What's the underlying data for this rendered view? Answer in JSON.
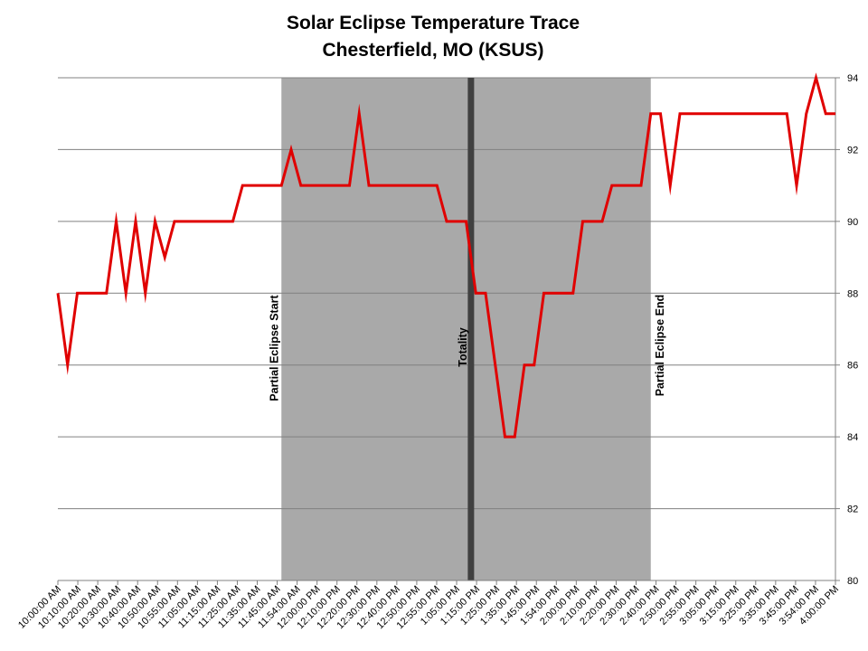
{
  "chart_data": {
    "type": "line",
    "title": "Solar Eclipse Temperature Trace",
    "subtitle": "Chesterfield, MO (KSUS)",
    "xlabel": "",
    "ylabel": "",
    "ylim": [
      80,
      94
    ],
    "y_ticks": [
      80,
      82,
      84,
      86,
      88,
      90,
      92,
      94
    ],
    "y_axis_position": "right",
    "grid": true,
    "legend": "none",
    "line_color": "#e00000",
    "x_tick_labels": [
      "10:00:00 AM",
      "10:10:00 AM",
      "10:20:00 AM",
      "10:30:00 AM",
      "10:40:00 AM",
      "10:50:00 AM",
      "10:55:00 AM",
      "11:05:00 AM",
      "11:15:00 AM",
      "11:25:00 AM",
      "11:35:00 AM",
      "11:45:00 AM",
      "11:54:00 AM",
      "12:00:00 PM",
      "12:10:00 PM",
      "12:20:00 PM",
      "12:30:00 PM",
      "12:40:00 PM",
      "12:50:00 PM",
      "12:55:00 PM",
      "1:05:00 PM",
      "1:15:00 PM",
      "1:25:00 PM",
      "1:35:00 PM",
      "1:45:00 PM",
      "1:54:00 PM",
      "2:00:00 PM",
      "2:10:00 PM",
      "2:20:00 PM",
      "2:30:00 PM",
      "2:40:00 PM",
      "2:50:00 PM",
      "2:55:00 PM",
      "3:05:00 PM",
      "3:15:00 PM",
      "3:25:00 PM",
      "3:35:00 PM",
      "3:45:00 PM",
      "3:54:00 PM",
      "4:00:00 PM"
    ],
    "series": [
      {
        "values": [
          88,
          86,
          88,
          88,
          88,
          88,
          90,
          88,
          90,
          88,
          90,
          89,
          90,
          90,
          90,
          90,
          90,
          90,
          90,
          91,
          91,
          91,
          91,
          91,
          92,
          91,
          91,
          91,
          91,
          91,
          91,
          93,
          91,
          91,
          91,
          91,
          91,
          91,
          91,
          91,
          90,
          90,
          90,
          88,
          88,
          86,
          84,
          84,
          86,
          86,
          88,
          88,
          88,
          88,
          90,
          90,
          90,
          91,
          91,
          91,
          91,
          93,
          93,
          91,
          93,
          93,
          93,
          93,
          93,
          93,
          93,
          93,
          93,
          93,
          93,
          93,
          91,
          93,
          94,
          93,
          93
        ]
      }
    ],
    "shaded_regions": [
      {
        "start_index": 23,
        "end_index": 61,
        "color": "#a9a9a9"
      }
    ],
    "annotations": [
      {
        "text": "Partial Eclipse Start",
        "index": 23
      },
      {
        "text": "Totality",
        "index": 42.5
      },
      {
        "text": "Partial Eclipse End",
        "index": 61
      }
    ],
    "totality_line_color": "#404040"
  }
}
